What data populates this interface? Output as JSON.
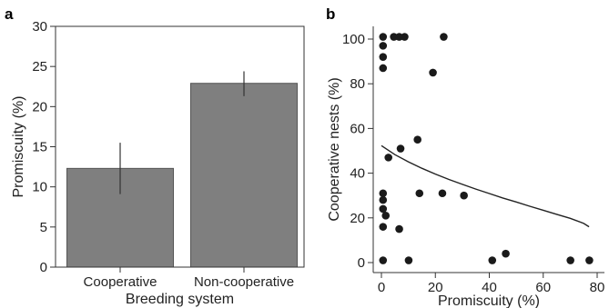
{
  "chart_data": [
    {
      "panel": "a",
      "type": "bar",
      "categories": [
        "Cooperative",
        "Non-cooperative"
      ],
      "values": [
        12.3,
        22.9
      ],
      "error_bars": [
        [
          9.1,
          15.5
        ],
        [
          21.3,
          24.4
        ]
      ],
      "xlabel": "Breeding system",
      "ylabel": "Promiscuity (%)",
      "ylim": [
        0,
        30
      ],
      "yticks": [
        "0",
        "5",
        "10",
        "15",
        "20",
        "25",
        "30"
      ],
      "bar_color": "#7f7f7f"
    },
    {
      "panel": "b",
      "type": "scatter",
      "xlabel": "Promiscuity (%)",
      "ylabel": "Cooperative nests (%)",
      "xlim": [
        0,
        80
      ],
      "ylim": [
        0,
        100
      ],
      "xticks": [
        "0",
        "20",
        "40",
        "60",
        "80"
      ],
      "yticks": [
        "0",
        "20",
        "40",
        "60",
        "80",
        "100"
      ],
      "points": [
        {
          "x": 0.6,
          "y": 101
        },
        {
          "x": 0.6,
          "y": 97
        },
        {
          "x": 0.6,
          "y": 92
        },
        {
          "x": 0.6,
          "y": 87
        },
        {
          "x": 4.6,
          "y": 101
        },
        {
          "x": 6.6,
          "y": 101
        },
        {
          "x": 8.6,
          "y": 101
        },
        {
          "x": 23.1,
          "y": 101
        },
        {
          "x": 19.1,
          "y": 85
        },
        {
          "x": 13.4,
          "y": 55
        },
        {
          "x": 7.1,
          "y": 51
        },
        {
          "x": 2.6,
          "y": 47
        },
        {
          "x": 0.6,
          "y": 31
        },
        {
          "x": 0.6,
          "y": 28
        },
        {
          "x": 0.6,
          "y": 24
        },
        {
          "x": 1.6,
          "y": 21
        },
        {
          "x": 0.6,
          "y": 16
        },
        {
          "x": 6.6,
          "y": 15
        },
        {
          "x": 14.1,
          "y": 31
        },
        {
          "x": 22.6,
          "y": 31
        },
        {
          "x": 30.6,
          "y": 30
        },
        {
          "x": 0.6,
          "y": 1
        },
        {
          "x": 10.1,
          "y": 1
        },
        {
          "x": 41.1,
          "y": 1
        },
        {
          "x": 46.1,
          "y": 4
        },
        {
          "x": 70.1,
          "y": 1
        },
        {
          "x": 77.1,
          "y": 1
        }
      ],
      "fit_curve": {
        "x": [
          0,
          5,
          10,
          15,
          20,
          25,
          30,
          35,
          40,
          45,
          50,
          55,
          60,
          65,
          70,
          75,
          77
        ],
        "y": [
          52.3,
          48.3,
          45.1,
          42.2,
          39.6,
          37.2,
          35.0,
          32.9,
          30.9,
          28.9,
          27.1,
          25.2,
          23.4,
          21.6,
          19.8,
          17.5,
          16.0
        ]
      },
      "point_color": "#1a1a1a"
    }
  ]
}
